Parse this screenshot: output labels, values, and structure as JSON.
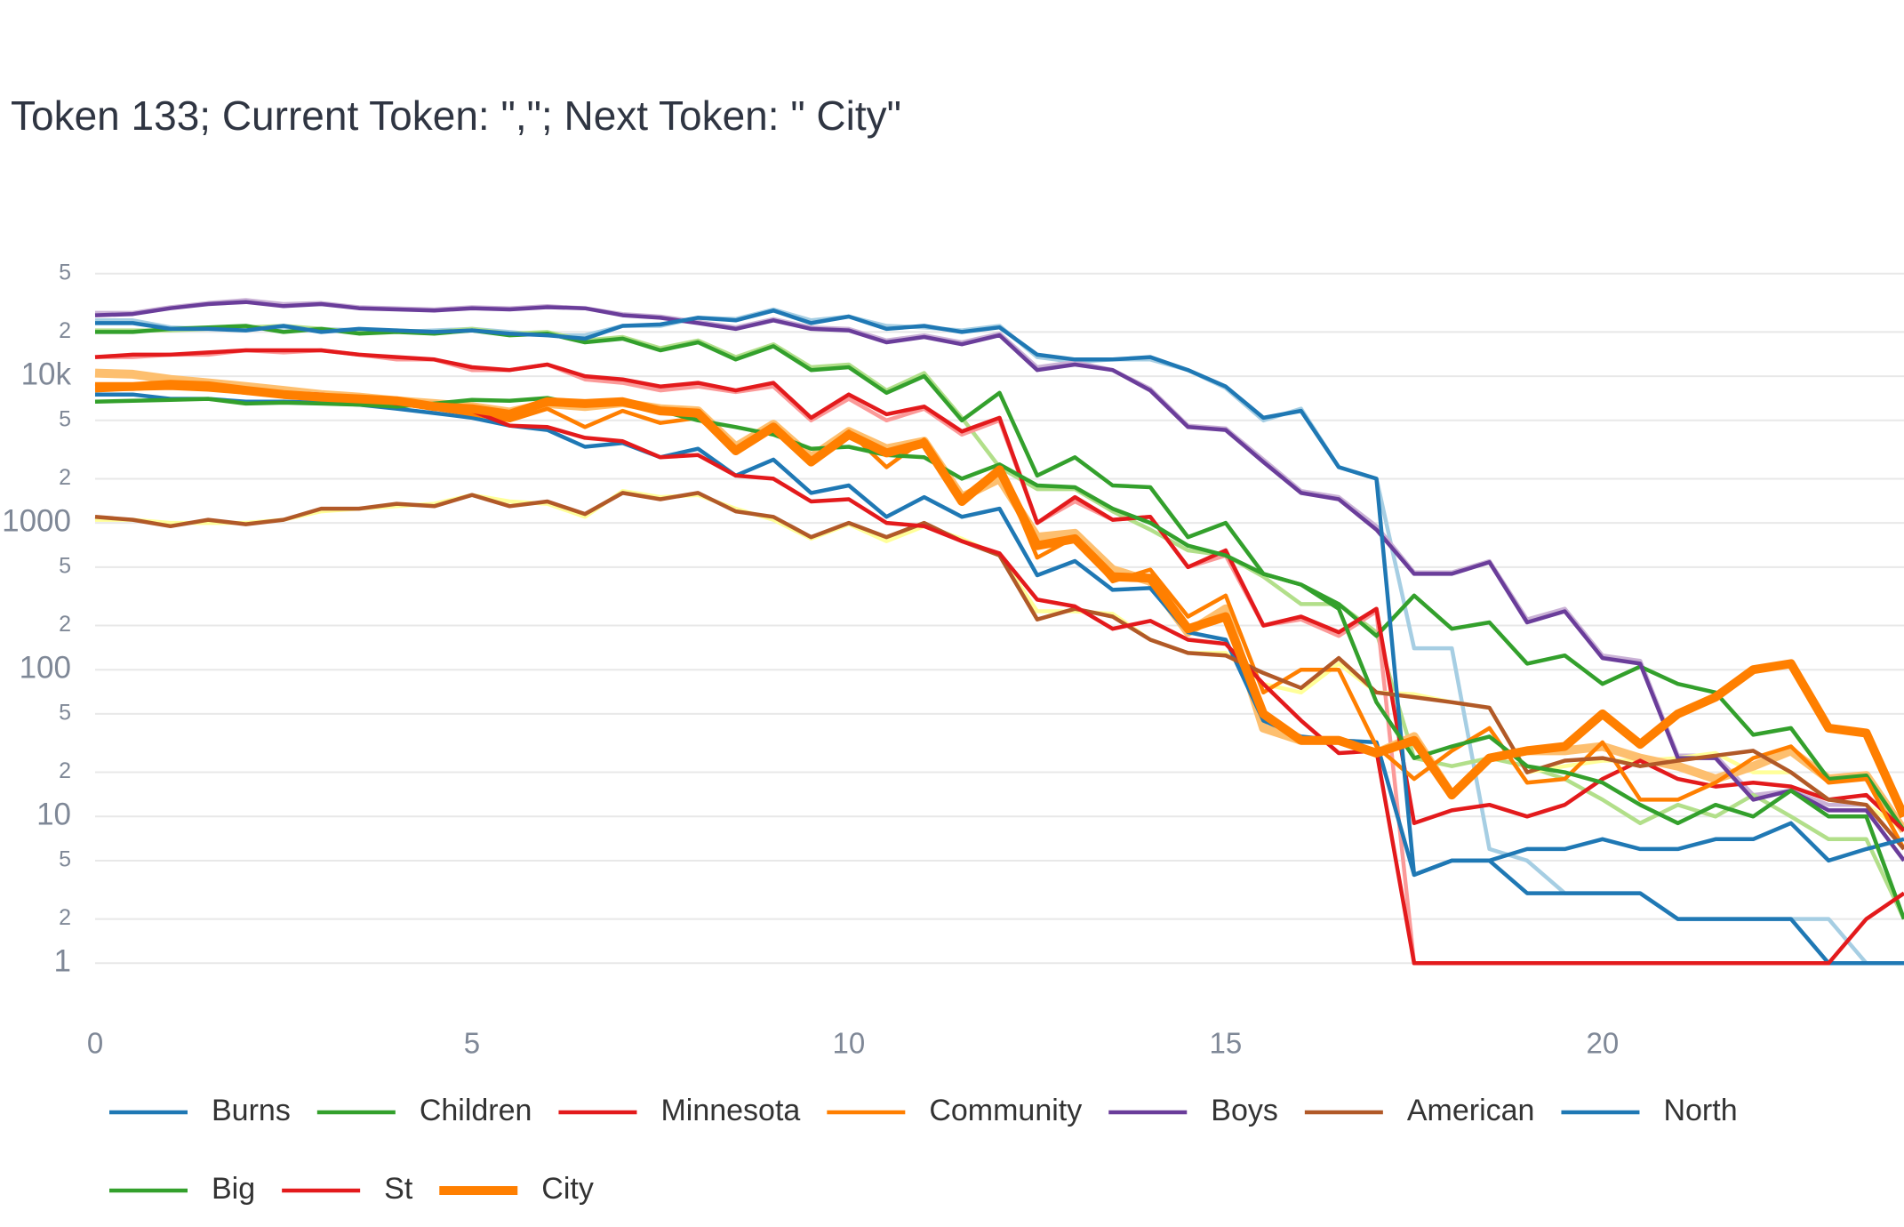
{
  "chart_data": {
    "type": "line",
    "title": "Token 133; Current Token: \",\"; Next Token: \" City\"",
    "log_y": true,
    "grid": true,
    "xlim": [
      0,
      24
    ],
    "xticks": [
      0,
      5,
      10,
      15,
      20
    ],
    "ylim": [
      0.5,
      80000
    ],
    "yticks": [
      1,
      2,
      5,
      10,
      {
        "value": 20,
        "label": "2"
      },
      {
        "value": 50,
        "label": "5"
      },
      100,
      {
        "value": 200,
        "label": "2"
      },
      {
        "value": 500,
        "label": "5"
      },
      1000,
      {
        "value": 2000,
        "label": "2"
      },
      {
        "value": 5000,
        "label": "5"
      },
      {
        "value": 10000,
        "label": "10k"
      },
      {
        "value": 20000,
        "label": "2"
      },
      {
        "value": 50000,
        "label": "5"
      }
    ],
    "x": [
      0,
      0.5,
      1,
      1.5,
      2,
      2.5,
      3,
      3.5,
      4,
      4.5,
      5,
      5.5,
      6,
      6.5,
      7,
      7.5,
      8,
      8.5,
      9,
      9.5,
      10,
      10.5,
      11,
      11.5,
      12,
      12.5,
      13,
      13.5,
      14,
      14.5,
      15,
      15.5,
      16,
      16.5,
      17,
      17.5,
      18,
      18.5,
      19,
      19.5,
      20,
      20.5,
      21,
      21.5,
      22,
      22.5,
      23,
      23.5,
      24
    ],
    "series": [
      {
        "color": "#a6cee3",
        "values": [
          24000,
          24000,
          21500,
          21000,
          21000,
          21500,
          21000,
          20500,
          20000,
          20500,
          21000,
          20000,
          19000,
          19000,
          22000,
          22000,
          25000,
          24500,
          28500,
          24000,
          25500,
          22000,
          21500,
          20500,
          22000,
          13500,
          12500,
          13000,
          13000,
          11000,
          8300,
          5000,
          6000,
          2400,
          2000,
          140,
          140,
          6,
          5,
          3,
          3,
          3,
          2,
          2,
          2,
          2,
          2,
          1,
          1
        ]
      },
      {
        "color": "#cab2d6",
        "values": [
          27000,
          27000,
          29500,
          31500,
          33000,
          31000,
          31500,
          29500,
          29000,
          28500,
          29500,
          29000,
          30000,
          29000,
          26500,
          25500,
          23500,
          21500,
          24500,
          21500,
          21000,
          17500,
          19000,
          17000,
          19500,
          11500,
          12500,
          11000,
          8200,
          4600,
          4400,
          2700,
          1650,
          1500,
          950,
          460,
          460,
          550,
          220,
          260,
          125,
          115,
          26,
          26,
          14,
          15,
          12,
          12,
          6
        ]
      },
      {
        "color": "#b2df8a",
        "values": [
          20500,
          20500,
          20500,
          21000,
          21500,
          22000,
          21000,
          20000,
          20500,
          20000,
          21000,
          19500,
          20000,
          17500,
          18500,
          15500,
          17500,
          13500,
          16500,
          11500,
          12000,
          8000,
          10500,
          5200,
          2400,
          1700,
          1700,
          1200,
          900,
          650,
          600,
          430,
          280,
          280,
          180,
          25,
          22,
          25,
          22,
          18,
          13,
          9,
          12,
          10,
          14,
          10,
          7,
          7,
          2
        ]
      },
      {
        "color": "#fb9a99",
        "values": [
          13500,
          13500,
          14000,
          14000,
          15000,
          14500,
          15000,
          14000,
          13000,
          13000,
          11000,
          11000,
          12000,
          9500,
          9000,
          8000,
          8500,
          7800,
          8500,
          5000,
          7000,
          5000,
          6000,
          4000,
          5000,
          1000,
          1400,
          1050,
          1100,
          500,
          600,
          200,
          220,
          170,
          250,
          1,
          1,
          1,
          1,
          1,
          1,
          1,
          1,
          1,
          1,
          1,
          1,
          1,
          1
        ]
      },
      {
        "color": "#ffff99",
        "values": [
          1050,
          1050,
          1000,
          1000,
          1000,
          1050,
          1200,
          1250,
          1300,
          1350,
          1550,
          1400,
          1350,
          1100,
          1650,
          1500,
          1550,
          1250,
          1050,
          780,
          980,
          750,
          950,
          780,
          600,
          250,
          250,
          240,
          160,
          130,
          130,
          80,
          70,
          110,
          70,
          68,
          60,
          55,
          20,
          22,
          24,
          24,
          25,
          27,
          20,
          20,
          13,
          12,
          8
        ]
      },
      {
        "color": "#fdbf6f",
        "bold": true,
        "values": [
          10500,
          10300,
          9500,
          9000,
          8500,
          8000,
          7500,
          7200,
          6800,
          6500,
          6200,
          5700,
          6500,
          6200,
          6600,
          6000,
          5800,
          3300,
          4700,
          2800,
          4200,
          3200,
          3600,
          1500,
          2000,
          800,
          850,
          480,
          400,
          180,
          260,
          40,
          33,
          33,
          27,
          35,
          14,
          25,
          28,
          28,
          30,
          25,
          22,
          18,
          22,
          28,
          18,
          19,
          8
        ]
      },
      {
        "name": "Burns",
        "color": "#1f78b4",
        "values": [
          7500,
          7500,
          7000,
          7000,
          6700,
          6700,
          6600,
          6400,
          6000,
          5600,
          5200,
          4600,
          4300,
          3300,
          3500,
          2800,
          3200,
          2100,
          2700,
          1600,
          1800,
          1100,
          1500,
          1100,
          1250,
          440,
          550,
          350,
          360,
          180,
          160,
          45,
          35,
          33,
          32,
          4,
          5,
          5,
          3,
          3,
          3,
          3,
          2,
          2,
          2,
          2,
          1,
          1,
          1
        ]
      },
      {
        "name": "Children",
        "color": "#33a02c",
        "values": [
          20000,
          20000,
          21000,
          21500,
          22000,
          20000,
          21000,
          19500,
          20000,
          19500,
          20500,
          19000,
          19500,
          17000,
          18000,
          15000,
          17000,
          13000,
          16000,
          11000,
          11500,
          7700,
          10000,
          5000,
          7700,
          2100,
          2800,
          1800,
          1750,
          800,
          1000,
          450,
          380,
          280,
          170,
          320,
          190,
          210,
          110,
          125,
          80,
          105,
          80,
          70,
          36,
          40,
          18,
          19,
          8
        ]
      },
      {
        "name": "Minnesota",
        "color": "#e31a1c",
        "values": [
          13500,
          14000,
          14000,
          14500,
          15000,
          15000,
          15000,
          14000,
          13500,
          13000,
          11500,
          11000,
          12000,
          10000,
          9500,
          8500,
          9000,
          8000,
          9000,
          5200,
          7500,
          5500,
          6200,
          4200,
          5200,
          1000,
          1500,
          1050,
          1100,
          500,
          650,
          200,
          230,
          180,
          260,
          9,
          11,
          12,
          10,
          12,
          18,
          24,
          18,
          16,
          17,
          16,
          13,
          14,
          8
        ]
      },
      {
        "name": "Community",
        "color": "#ff7f00",
        "values": [
          8000,
          8200,
          8300,
          8100,
          7700,
          7400,
          7000,
          6800,
          6500,
          6000,
          5500,
          5000,
          6000,
          4500,
          5800,
          4800,
          5200,
          3200,
          4400,
          2700,
          4200,
          2400,
          3700,
          1500,
          2400,
          580,
          800,
          400,
          480,
          230,
          320,
          70,
          100,
          100,
          30,
          18,
          28,
          40,
          17,
          18,
          32,
          13,
          13,
          17,
          25,
          30,
          17,
          18,
          6
        ]
      },
      {
        "name": "Boys",
        "color": "#6a3d9a",
        "values": [
          26000,
          26500,
          29000,
          31000,
          32000,
          30000,
          31000,
          29000,
          28500,
          28000,
          29000,
          28500,
          29500,
          29000,
          26000,
          25000,
          23000,
          21000,
          24000,
          21000,
          20500,
          17000,
          18500,
          16500,
          19000,
          11000,
          12000,
          11000,
          8000,
          4500,
          4300,
          2600,
          1600,
          1450,
          900,
          450,
          450,
          540,
          210,
          250,
          120,
          110,
          25,
          25,
          13,
          15,
          11,
          11,
          5
        ]
      },
      {
        "name": "American",
        "color": "#b15928",
        "values": [
          1100,
          1050,
          950,
          1050,
          980,
          1050,
          1250,
          1250,
          1350,
          1300,
          1550,
          1300,
          1400,
          1150,
          1600,
          1450,
          1600,
          1200,
          1100,
          800,
          1000,
          800,
          1000,
          750,
          600,
          220,
          260,
          230,
          160,
          130,
          125,
          95,
          75,
          120,
          70,
          65,
          60,
          55,
          20,
          24,
          25,
          22,
          24,
          26,
          28,
          20,
          13,
          12,
          6
        ]
      },
      {
        "name": "North",
        "color": "#1f78b4",
        "values": [
          23000,
          23000,
          21000,
          21000,
          20500,
          22000,
          20000,
          21000,
          20500,
          20000,
          20500,
          19500,
          19000,
          18000,
          22000,
          22500,
          25000,
          24000,
          28000,
          23000,
          25500,
          21000,
          22000,
          20000,
          21500,
          14000,
          13000,
          13000,
          13500,
          11000,
          8500,
          5200,
          5800,
          2400,
          2000,
          4,
          5,
          5,
          6,
          6,
          7,
          6,
          6,
          7,
          7,
          9,
          5,
          6,
          7
        ]
      },
      {
        "name": "Big",
        "color": "#33a02c",
        "values": [
          6700,
          6800,
          6900,
          7000,
          6500,
          6600,
          6500,
          6400,
          6200,
          6500,
          6900,
          6800,
          7100,
          6300,
          6500,
          5800,
          5000,
          4500,
          4000,
          3200,
          3300,
          2900,
          2800,
          2000,
          2500,
          1800,
          1750,
          1250,
          1000,
          700,
          600,
          450,
          380,
          260,
          60,
          25,
          30,
          35,
          22,
          20,
          17,
          12,
          9,
          12,
          10,
          15,
          10,
          10,
          2
        ]
      },
      {
        "name": "St",
        "color": "#e31a1c",
        "values": [
          8500,
          8700,
          8500,
          8300,
          8000,
          7700,
          7500,
          7000,
          6500,
          6200,
          5800,
          4600,
          4500,
          3800,
          3600,
          2800,
          2900,
          2100,
          2000,
          1400,
          1450,
          1000,
          950,
          750,
          620,
          300,
          270,
          190,
          215,
          160,
          150,
          80,
          45,
          27,
          28,
          1,
          1,
          1,
          1,
          1,
          1,
          1,
          1,
          1,
          1,
          1,
          1,
          2,
          3
        ]
      },
      {
        "name": "City",
        "color": "#ff7f00",
        "bold": true,
        "values": [
          8500,
          8500,
          8800,
          8600,
          8000,
          7500,
          7200,
          7000,
          6800,
          6200,
          6000,
          5500,
          6700,
          6500,
          6700,
          5800,
          5600,
          3100,
          4500,
          2600,
          4000,
          3000,
          3500,
          1400,
          2300,
          700,
          780,
          430,
          420,
          190,
          230,
          50,
          33,
          33,
          27,
          33,
          14,
          25,
          28,
          30,
          50,
          31,
          50,
          65,
          100,
          110,
          40,
          37,
          10
        ]
      }
    ]
  }
}
